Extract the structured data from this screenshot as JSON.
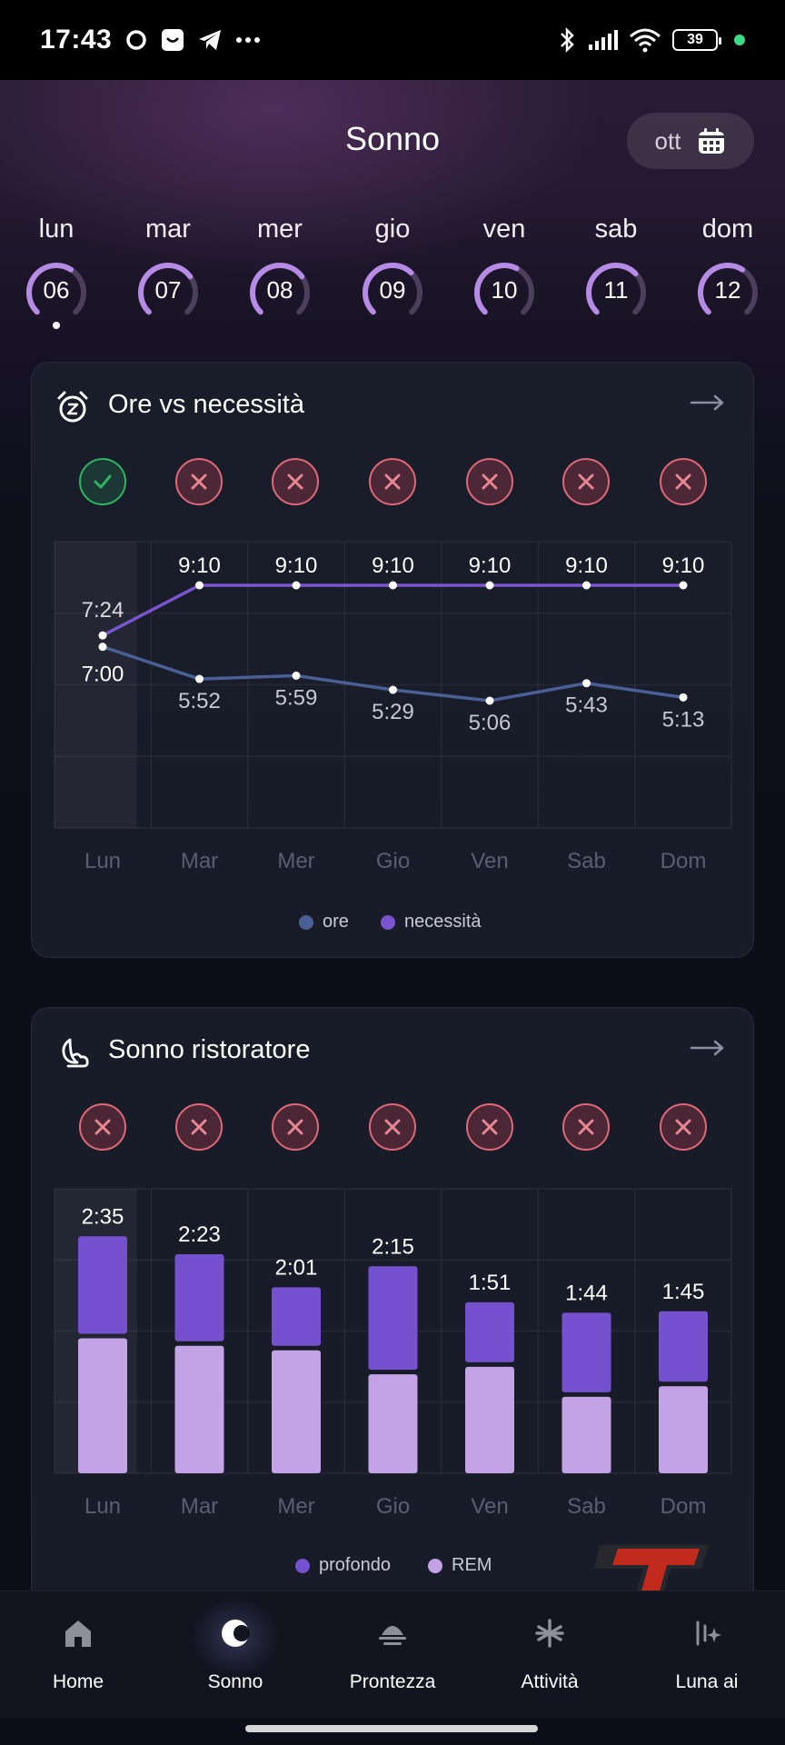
{
  "status_bar": {
    "time": "17:43",
    "battery": "39"
  },
  "header": {
    "title": "Sonno",
    "month": "ott"
  },
  "days": [
    {
      "name": "lun",
      "num": "06",
      "fill": 0.62,
      "selected": true
    },
    {
      "name": "mar",
      "num": "07",
      "fill": 0.7
    },
    {
      "name": "mer",
      "num": "08",
      "fill": 0.7
    },
    {
      "name": "gio",
      "num": "09",
      "fill": 0.66
    },
    {
      "name": "ven",
      "num": "10",
      "fill": 0.6
    },
    {
      "name": "sab",
      "num": "11",
      "fill": 0.67
    },
    {
      "name": "dom",
      "num": "12",
      "fill": 0.62
    }
  ],
  "card_hours": {
    "title": "Ore vs necessità",
    "status": [
      "ok",
      "ko",
      "ko",
      "ko",
      "ko",
      "ko",
      "ko"
    ],
    "legend": {
      "ore": "ore",
      "necessita": "necessità"
    }
  },
  "card_restorative": {
    "title": "Sonno ristoratore",
    "status": [
      "ko",
      "ko",
      "ko",
      "ko",
      "ko",
      "ko",
      "ko"
    ],
    "legend": {
      "profondo": "profondo",
      "rem": "REM"
    }
  },
  "chart_data": [
    {
      "type": "line",
      "categories": [
        "Lun",
        "Mar",
        "Mer",
        "Gio",
        "Ven",
        "Sab",
        "Dom"
      ],
      "series": [
        {
          "name": "ore",
          "values": [
            "7:00",
            "5:52",
            "5:59",
            "5:29",
            "5:06",
            "5:43",
            "5:13"
          ],
          "minutes": [
            420,
            352,
            359,
            329,
            306,
            343,
            313
          ],
          "color": "#4a5f95"
        },
        {
          "name": "necessità",
          "values": [
            "7:24",
            "9:10",
            "9:10",
            "9:10",
            "9:10",
            "9:10",
            "9:10"
          ],
          "minutes": [
            444,
            550,
            550,
            550,
            550,
            550,
            550
          ],
          "color": "#7a55cf"
        }
      ],
      "highlighted_category": "Lun",
      "grid": true
    },
    {
      "type": "bar",
      "stacked": true,
      "categories": [
        "Lun",
        "Mar",
        "Mer",
        "Gio",
        "Ven",
        "Sab",
        "Dom"
      ],
      "totals": [
        "2:35",
        "2:23",
        "2:01",
        "2:15",
        "1:51",
        "1:44",
        "1:45"
      ],
      "series": [
        {
          "name": "profondo",
          "minutes": [
            65,
            58,
            39,
            69,
            40,
            53,
            47
          ],
          "color": "#7651cf"
        },
        {
          "name": "REM",
          "minutes": [
            90,
            85,
            82,
            66,
            71,
            51,
            58
          ],
          "color": "#c3a3e6"
        }
      ],
      "highlighted_category": "Lun",
      "grid": true
    }
  ],
  "nav": [
    {
      "label": "Home",
      "icon": "home-icon"
    },
    {
      "label": "Sonno",
      "icon": "moon-icon",
      "active": true
    },
    {
      "label": "Prontezza",
      "icon": "sunrise-icon"
    },
    {
      "label": "Attività",
      "icon": "asterisk-icon"
    },
    {
      "label": "Luna ai",
      "icon": "sparkle-icon"
    }
  ],
  "watermark": {
    "text": "tech"
  }
}
